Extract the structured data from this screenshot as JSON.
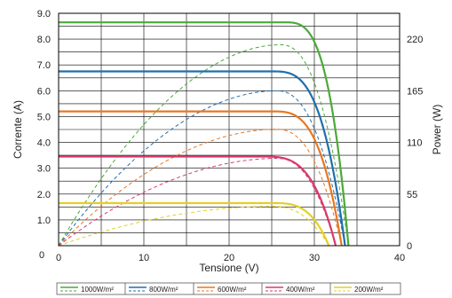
{
  "chart_data": {
    "type": "line",
    "xlabel": "Tensione (V)",
    "ylabel_left": "Corrente (A)",
    "ylabel_right": "Power (W)",
    "xlim": [
      0,
      40
    ],
    "ylim_left": [
      0,
      9.0
    ],
    "ylim_right": [
      0,
      247.5
    ],
    "x_ticks": [
      "0",
      "10",
      "20",
      "30",
      "40"
    ],
    "y_left_ticks": [
      "1.0",
      "2.0",
      "3.0",
      "4.0",
      "5.0",
      "6.0",
      "7.0",
      "8.0",
      "9.0"
    ],
    "y_right_ticks": [
      "0",
      "55",
      "110",
      "165",
      "220"
    ],
    "grid": true,
    "legend_position": "bottom",
    "series": [
      {
        "name": "1000W/m²",
        "color": "#4aaa38",
        "isc": 8.65,
        "voc": 34.0,
        "knee": 26.5,
        "vmpp": 26.0,
        "pmax": 214
      },
      {
        "name": "800W/m²",
        "color": "#1f6fae",
        "isc": 6.75,
        "voc": 33.6,
        "knee": 25.0,
        "vmpp": 25.5,
        "pmax": 165
      },
      {
        "name": "600W/m²",
        "color": "#e87722",
        "isc": 5.2,
        "voc": 33.2,
        "knee": 25.0,
        "vmpp": 25.5,
        "pmax": 124
      },
      {
        "name": "400W/m²",
        "color": "#d83a6e",
        "isc": 3.45,
        "voc": 32.5,
        "knee": 24.0,
        "vmpp": 25.5,
        "pmax": 93
      },
      {
        "name": "200W/m²",
        "color": "#e3cf27",
        "isc": 1.65,
        "voc": 31.7,
        "knee": 25.0,
        "vmpp": 25.0,
        "pmax": 42
      }
    ]
  }
}
